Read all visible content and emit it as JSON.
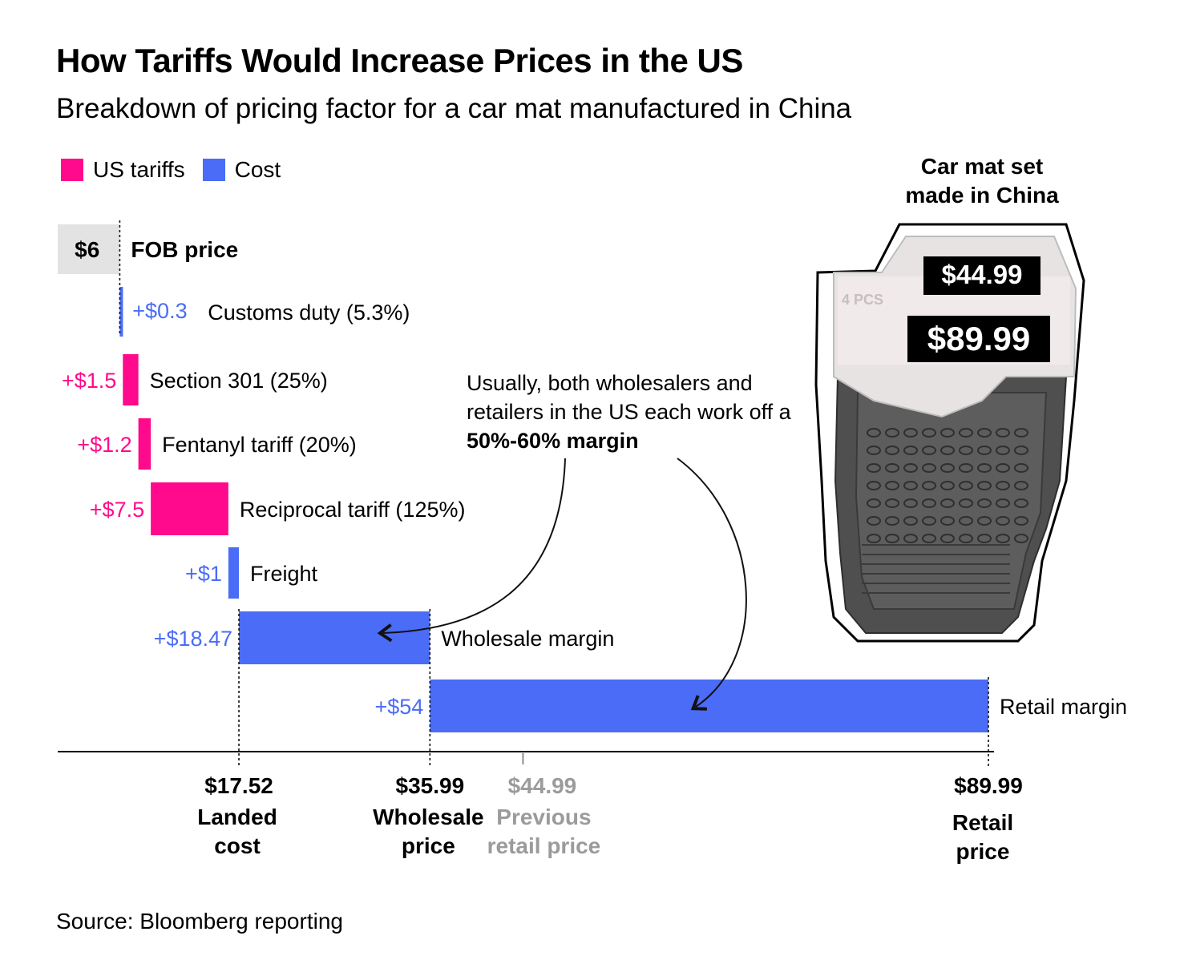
{
  "header": {
    "title": "How Tariffs Would Increase Prices in the US",
    "subtitle": "Breakdown of pricing factor for a car mat manufactured in China"
  },
  "legend": [
    {
      "label": "US tariffs",
      "color": "#ff0a8c"
    },
    {
      "label": "Cost",
      "color": "#4a6cf7"
    }
  ],
  "annotation": {
    "text": "Usually, both wholesalers and retailers in the US each work off a",
    "bold": "50%-60% margin"
  },
  "product": {
    "title_line1": "Car mat set",
    "title_line2": "made in China",
    "old_price_tag": "$44.99",
    "new_price_tag": "$89.99",
    "brand_text": "4 PCS"
  },
  "source": "Source: Bloomberg reporting",
  "chart_data": {
    "type": "bar",
    "subtype": "waterfall",
    "orientation": "horizontal",
    "xlim": [
      0,
      89.99
    ],
    "steps": [
      {
        "label": "FOB price",
        "value_label": "$6",
        "start": 0,
        "end": 6,
        "kind": "base",
        "color": "#e3e3e3"
      },
      {
        "label": "Customs duty (5.3%)",
        "value_label": "+$0.3",
        "start": 6,
        "end": 6.3,
        "kind": "cost",
        "color": "#4a6cf7"
      },
      {
        "label": "Section 301 (25%)",
        "value_label": "+$1.5",
        "start": 6.3,
        "end": 7.8,
        "kind": "tariff",
        "color": "#ff0a8c"
      },
      {
        "label": "Fentanyl tariff (20%)",
        "value_label": "+$1.2",
        "start": 7.8,
        "end": 9.0,
        "kind": "tariff",
        "color": "#ff0a8c"
      },
      {
        "label": "Reciprocal tariff (125%)",
        "value_label": "+$7.5",
        "start": 9.0,
        "end": 16.5,
        "kind": "tariff",
        "color": "#ff0a8c"
      },
      {
        "label": "Freight",
        "value_label": "+$1",
        "start": 16.5,
        "end": 17.52,
        "kind": "cost",
        "color": "#4a6cf7"
      },
      {
        "label": "Wholesale margin",
        "value_label": "+$18.47",
        "start": 17.52,
        "end": 35.99,
        "kind": "cost",
        "color": "#4a6cf7"
      },
      {
        "label": "Retail margin",
        "value_label": "+$54",
        "start": 35.99,
        "end": 89.99,
        "kind": "cost",
        "color": "#4a6cf7"
      }
    ],
    "axis_markers": [
      {
        "value": 17.52,
        "price": "$17.52",
        "line1": "Landed",
        "line2": "cost",
        "muted": false
      },
      {
        "value": 35.99,
        "price": "$35.99",
        "line1": "Wholesale",
        "line2": "price",
        "muted": false
      },
      {
        "value": 44.99,
        "price": "$44.99",
        "line1": "Previous",
        "line2": "retail price",
        "muted": true
      },
      {
        "value": 89.99,
        "price": "$89.99",
        "line1": "Retail",
        "line2": "price",
        "muted": false
      }
    ],
    "colors": {
      "tariff": "#ff0a8c",
      "cost": "#4a6cf7",
      "base": "#e3e3e3",
      "muted_text": "#9b9b9b"
    }
  }
}
